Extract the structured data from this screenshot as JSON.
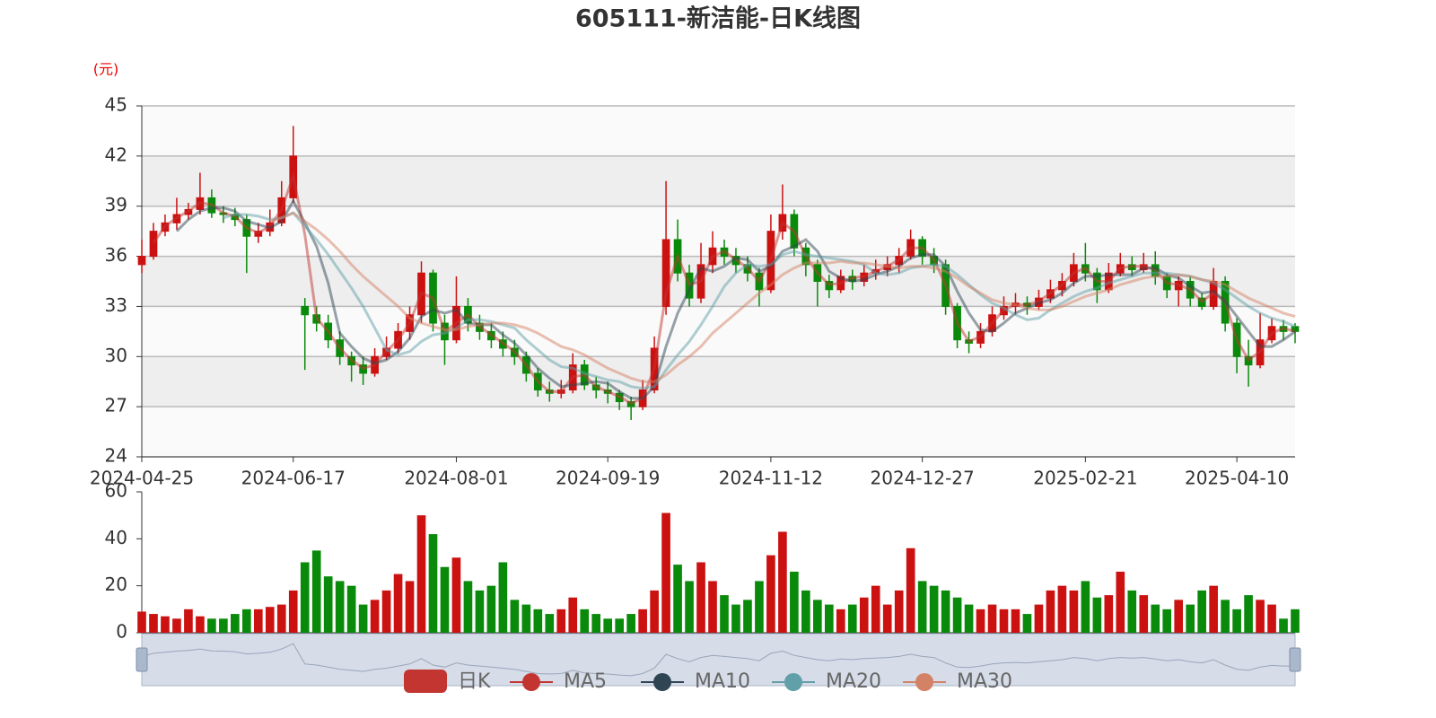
{
  "chart_data": {
    "type": "candlestick",
    "title": "605111-新洁能-日K线图",
    "unit_label": "(元)",
    "candle_name": "日K",
    "candle_legend_color": "#c23531",
    "up_color": "#cc1111",
    "down_color": "#0a8a0a",
    "grid": true,
    "ylim": [
      24,
      45
    ],
    "yticks": [
      24,
      27,
      30,
      33,
      36,
      39,
      42,
      45
    ],
    "categories": [
      "2024-04-25",
      null,
      null,
      null,
      null,
      null,
      null,
      null,
      null,
      null,
      null,
      null,
      null,
      "2024-06-17",
      null,
      null,
      null,
      null,
      null,
      null,
      null,
      null,
      null,
      null,
      null,
      null,
      null,
      "2024-08-01",
      null,
      null,
      null,
      null,
      null,
      null,
      null,
      null,
      null,
      null,
      null,
      null,
      "2024-09-19",
      null,
      null,
      null,
      null,
      null,
      null,
      null,
      null,
      null,
      null,
      null,
      null,
      null,
      "2024-11-12",
      null,
      null,
      null,
      null,
      null,
      null,
      null,
      null,
      null,
      null,
      null,
      null,
      "2024-12-27",
      null,
      null,
      null,
      null,
      null,
      null,
      null,
      null,
      null,
      null,
      null,
      null,
      null,
      "2025-02-21",
      null,
      null,
      null,
      null,
      null,
      null,
      null,
      null,
      null,
      null,
      null,
      null,
      "2025-04-10",
      null,
      null,
      null,
      null,
      null
    ],
    "ohlc": [
      [
        35.5,
        36.0,
        35.0,
        37.0
      ],
      [
        36.0,
        37.5,
        35.8,
        38.0
      ],
      [
        37.5,
        38.0,
        37.2,
        38.5
      ],
      [
        38.0,
        38.5,
        37.6,
        39.5
      ],
      [
        38.5,
        38.8,
        38.2,
        39.2
      ],
      [
        38.8,
        39.5,
        38.5,
        41.0
      ],
      [
        39.5,
        38.6,
        38.3,
        40.0
      ],
      [
        38.6,
        38.5,
        38.0,
        39.0
      ],
      [
        38.5,
        38.2,
        37.8,
        38.9
      ],
      [
        38.2,
        37.2,
        35.0,
        38.5
      ],
      [
        37.2,
        37.5,
        36.8,
        38.0
      ],
      [
        37.5,
        38.0,
        37.2,
        38.8
      ],
      [
        38.0,
        39.5,
        37.8,
        40.5
      ],
      [
        39.5,
        42.0,
        39.2,
        43.8
      ],
      [
        33.0,
        32.5,
        29.2,
        33.5
      ],
      [
        32.5,
        32.0,
        31.5,
        33.0
      ],
      [
        32.0,
        31.0,
        30.5,
        32.5
      ],
      [
        31.0,
        30.0,
        29.5,
        31.5
      ],
      [
        30.0,
        29.5,
        28.5,
        30.3
      ],
      [
        29.5,
        29.0,
        28.3,
        30.0
      ],
      [
        29.0,
        30.0,
        28.8,
        30.5
      ],
      [
        30.0,
        30.5,
        29.8,
        31.2
      ],
      [
        30.5,
        31.5,
        30.2,
        32.0
      ],
      [
        31.5,
        32.5,
        31.0,
        33.0
      ],
      [
        32.5,
        35.0,
        32.0,
        35.7
      ],
      [
        35.0,
        32.0,
        31.5,
        35.2
      ],
      [
        32.0,
        31.0,
        29.5,
        32.5
      ],
      [
        31.0,
        33.0,
        30.8,
        34.8
      ],
      [
        33.0,
        32.0,
        31.5,
        33.5
      ],
      [
        32.0,
        31.5,
        31.0,
        32.5
      ],
      [
        31.5,
        31.0,
        30.5,
        32.0
      ],
      [
        31.0,
        30.5,
        30.0,
        31.5
      ],
      [
        30.5,
        30.0,
        29.5,
        31.0
      ],
      [
        30.0,
        29.0,
        28.5,
        30.3
      ],
      [
        29.0,
        28.0,
        27.6,
        29.3
      ],
      [
        28.0,
        27.8,
        27.3,
        28.5
      ],
      [
        27.8,
        28.0,
        27.5,
        28.6
      ],
      [
        28.0,
        29.5,
        27.8,
        30.2
      ],
      [
        29.5,
        28.3,
        28.0,
        29.8
      ],
      [
        28.3,
        28.0,
        27.5,
        28.8
      ],
      [
        28.0,
        27.8,
        27.2,
        28.5
      ],
      [
        27.8,
        27.3,
        26.8,
        28.0
      ],
      [
        27.3,
        27.0,
        26.2,
        27.6
      ],
      [
        27.0,
        28.0,
        26.8,
        28.6
      ],
      [
        28.0,
        30.5,
        27.8,
        31.2
      ],
      [
        33.0,
        37.0,
        32.5,
        40.5
      ],
      [
        37.0,
        35.0,
        34.5,
        38.2
      ],
      [
        35.0,
        33.5,
        33.0,
        35.5
      ],
      [
        33.5,
        35.5,
        33.2,
        36.8
      ],
      [
        35.5,
        36.5,
        35.0,
        37.5
      ],
      [
        36.5,
        36.0,
        35.5,
        37.0
      ],
      [
        36.0,
        35.5,
        35.0,
        36.5
      ],
      [
        35.5,
        35.0,
        34.5,
        36.0
      ],
      [
        35.0,
        34.0,
        33.0,
        35.3
      ],
      [
        34.0,
        37.5,
        33.8,
        38.5
      ],
      [
        37.5,
        38.5,
        37.0,
        40.3
      ],
      [
        38.5,
        36.5,
        36.0,
        38.8
      ],
      [
        36.5,
        35.5,
        34.8,
        36.8
      ],
      [
        35.5,
        34.5,
        33.0,
        35.8
      ],
      [
        34.5,
        34.0,
        33.5,
        34.9
      ],
      [
        34.0,
        34.8,
        33.8,
        35.2
      ],
      [
        34.8,
        34.5,
        34.0,
        35.2
      ],
      [
        34.5,
        35.0,
        34.2,
        35.5
      ],
      [
        35.0,
        35.2,
        34.6,
        35.8
      ],
      [
        35.2,
        35.5,
        34.8,
        36.0
      ],
      [
        35.5,
        36.0,
        35.0,
        36.5
      ],
      [
        36.0,
        37.0,
        35.8,
        37.6
      ],
      [
        37.0,
        36.0,
        35.5,
        37.2
      ],
      [
        36.0,
        35.5,
        35.0,
        36.5
      ],
      [
        35.5,
        33.0,
        32.5,
        35.8
      ],
      [
        33.0,
        31.0,
        30.5,
        33.2
      ],
      [
        31.0,
        30.8,
        30.2,
        31.5
      ],
      [
        30.8,
        31.5,
        30.5,
        32.0
      ],
      [
        31.5,
        32.5,
        31.2,
        33.0
      ],
      [
        32.5,
        33.0,
        32.2,
        33.6
      ],
      [
        33.0,
        33.2,
        32.5,
        33.8
      ],
      [
        33.2,
        33.0,
        32.5,
        33.6
      ],
      [
        33.0,
        33.5,
        32.8,
        34.0
      ],
      [
        33.5,
        34.0,
        33.2,
        34.6
      ],
      [
        34.0,
        34.5,
        33.6,
        35.0
      ],
      [
        34.5,
        35.5,
        34.2,
        36.2
      ],
      [
        35.5,
        35.0,
        34.5,
        36.8
      ],
      [
        35.0,
        34.0,
        33.2,
        35.3
      ],
      [
        34.0,
        35.0,
        33.8,
        35.6
      ],
      [
        35.0,
        35.5,
        34.8,
        36.2
      ],
      [
        35.5,
        35.2,
        34.8,
        36.0
      ],
      [
        35.2,
        35.5,
        35.0,
        36.2
      ],
      [
        35.5,
        34.8,
        34.3,
        36.3
      ],
      [
        34.8,
        34.0,
        33.5,
        35.0
      ],
      [
        34.0,
        34.5,
        33.0,
        34.8
      ],
      [
        34.5,
        33.5,
        33.0,
        34.8
      ],
      [
        33.5,
        33.0,
        32.8,
        33.8
      ],
      [
        33.0,
        34.5,
        32.8,
        35.3
      ],
      [
        34.5,
        32.0,
        31.5,
        34.8
      ],
      [
        32.0,
        30.0,
        29.0,
        32.3
      ],
      [
        30.0,
        29.5,
        28.2,
        31.0
      ],
      [
        29.5,
        31.0,
        29.3,
        32.6
      ],
      [
        31.0,
        31.8,
        30.8,
        32.3
      ],
      [
        31.8,
        31.5,
        31.0,
        32.2
      ],
      [
        31.8,
        31.5,
        30.8,
        32.0
      ]
    ],
    "series": [
      {
        "name": "MA5",
        "color": "#c23531",
        "values": [
          null,
          36.8,
          37.8,
          38.3,
          38.7,
          39.2,
          39.1,
          38.6,
          38.4,
          37.7,
          37.4,
          37.8,
          38.8,
          40.8,
          37.3,
          32.3,
          31.5,
          30.5,
          29.8,
          29.3,
          29.5,
          30.3,
          31.0,
          32.0,
          33.8,
          33.5,
          31.5,
          32.0,
          32.5,
          31.8,
          31.3,
          30.8,
          30.3,
          29.5,
          28.5,
          27.9,
          27.9,
          28.8,
          28.9,
          28.2,
          27.9,
          27.6,
          27.2,
          27.5,
          29.3,
          33.8,
          36.0,
          34.3,
          34.5,
          36.0,
          36.3,
          35.8,
          35.3,
          34.5,
          35.8,
          38.0,
          37.5,
          36.0,
          35.0,
          34.3,
          34.4,
          34.7,
          34.8,
          35.1,
          35.4,
          35.8,
          36.5,
          36.5,
          35.8,
          34.3,
          32.0,
          30.9,
          31.2,
          32.0,
          32.8,
          33.1,
          33.1,
          33.3,
          33.8,
          34.3,
          35.0,
          35.3,
          34.5,
          34.5,
          35.3,
          35.4,
          35.4,
          35.2,
          34.4,
          34.3,
          34.0,
          33.3,
          33.8,
          33.3,
          31.0,
          29.8,
          30.3,
          31.4,
          31.7,
          31.5
        ]
      },
      {
        "name": "MA10",
        "color": "#2f4554",
        "values": [
          null,
          null,
          null,
          37.5,
          38.2,
          38.7,
          38.9,
          38.9,
          38.7,
          38.1,
          37.9,
          37.7,
          38.1,
          39.3,
          38.0,
          36.6,
          34.4,
          31.4,
          30.6,
          29.9,
          29.6,
          29.8,
          30.3,
          31.1,
          32.4,
          32.8,
          32.6,
          32.8,
          32.0,
          31.9,
          31.9,
          31.3,
          30.8,
          30.1,
          29.3,
          28.7,
          28.2,
          28.3,
          28.4,
          28.5,
          28.4,
          27.9,
          27.5,
          27.5,
          28.2,
          30.6,
          32.6,
          34.0,
          35.3,
          35.1,
          35.4,
          35.9,
          35.8,
          35.1,
          35.4,
          36.3,
          36.6,
          37.0,
          36.3,
          35.1,
          34.7,
          34.5,
          34.6,
          34.9,
          35.1,
          35.4,
          35.9,
          36.1,
          36.1,
          35.4,
          33.9,
          32.6,
          31.6,
          31.5,
          32.0,
          32.6,
          32.9,
          33.2,
          33.4,
          33.8,
          34.4,
          34.8,
          34.8,
          34.9,
          34.9,
          34.9,
          35.3,
          35.3,
          34.9,
          34.7,
          34.2,
          33.8,
          33.9,
          33.3,
          32.4,
          31.5,
          30.6,
          30.6,
          31.0,
          31.5
        ]
      },
      {
        "name": "MA20",
        "color": "#61a0a8",
        "values": [
          null,
          null,
          null,
          null,
          null,
          null,
          null,
          38.3,
          38.5,
          38.5,
          38.4,
          38.2,
          38.3,
          38.6,
          37.8,
          37.0,
          36.1,
          35.1,
          34.1,
          33.0,
          31.7,
          30.4,
          30.1,
          30.3,
          30.9,
          31.3,
          31.4,
          31.7,
          32.2,
          32.2,
          32.1,
          31.9,
          31.7,
          31.0,
          30.4,
          29.8,
          29.4,
          29.3,
          29.0,
          28.8,
          28.6,
          28.5,
          28.2,
          28.1,
          28.2,
          29.2,
          30.1,
          30.9,
          31.9,
          33.0,
          34.2,
          35.0,
          35.5,
          35.4,
          35.5,
          36.1,
          36.3,
          36.1,
          36.0,
          35.9,
          35.8,
          35.7,
          35.5,
          35.0,
          34.9,
          35.0,
          35.3,
          35.4,
          35.5,
          35.4,
          34.9,
          34.3,
          33.7,
          33.2,
          32.9,
          32.5,
          32.2,
          32.3,
          32.8,
          33.2,
          33.6,
          33.9,
          34.1,
          34.4,
          34.6,
          34.8,
          35.0,
          35.0,
          35.0,
          34.9,
          34.8,
          34.6,
          34.4,
          34.0,
          33.5,
          33.0,
          32.6,
          32.3,
          32.1,
          31.8
        ]
      },
      {
        "name": "MA30",
        "color": "#d48265",
        "values": [
          null,
          null,
          null,
          null,
          null,
          null,
          null,
          null,
          null,
          null,
          null,
          38.1,
          38.3,
          38.6,
          38.1,
          37.6,
          37.0,
          36.3,
          35.5,
          34.8,
          34.2,
          33.6,
          33.0,
          32.3,
          32.0,
          31.8,
          31.6,
          31.6,
          31.8,
          31.9,
          32.0,
          32.0,
          31.9,
          31.7,
          31.4,
          31.0,
          30.6,
          30.4,
          30.1,
          29.7,
          29.3,
          29.0,
          28.7,
          28.5,
          28.5,
          28.9,
          29.5,
          30.0,
          30.6,
          31.4,
          32.0,
          32.6,
          33.2,
          33.8,
          34.3,
          34.9,
          35.3,
          35.6,
          35.6,
          35.6,
          35.7,
          35.6,
          35.6,
          35.5,
          35.4,
          35.3,
          35.4,
          35.4,
          35.3,
          35.1,
          34.7,
          34.2,
          33.8,
          33.4,
          33.2,
          33.1,
          32.9,
          32.8,
          32.8,
          33.0,
          33.3,
          33.6,
          33.8,
          34.0,
          34.3,
          34.5,
          34.7,
          34.8,
          34.8,
          34.9,
          34.8,
          34.6,
          34.5,
          34.3,
          33.9,
          33.5,
          33.2,
          32.9,
          32.6,
          32.4
        ]
      }
    ],
    "volume": {
      "ylim": [
        0,
        60
      ],
      "yticks": [
        0,
        20,
        40,
        60
      ],
      "values": [
        9,
        8,
        7,
        6,
        10,
        7,
        6,
        6,
        8,
        10,
        10,
        11,
        12,
        18,
        30,
        35,
        24,
        22,
        20,
        12,
        14,
        18,
        25,
        22,
        50,
        42,
        28,
        32,
        22,
        18,
        20,
        30,
        14,
        12,
        10,
        8,
        10,
        15,
        10,
        8,
        6,
        6,
        8,
        10,
        18,
        51,
        29,
        22,
        30,
        22,
        16,
        12,
        14,
        22,
        33,
        43,
        26,
        18,
        14,
        12,
        10,
        12,
        15,
        20,
        12,
        18,
        36,
        22,
        20,
        18,
        15,
        12,
        10,
        12,
        10,
        10,
        8,
        12,
        18,
        20,
        18,
        22,
        15,
        16,
        26,
        18,
        16,
        12,
        10,
        14,
        12,
        18,
        20,
        14,
        10,
        16,
        14,
        12,
        6,
        10
      ]
    }
  }
}
